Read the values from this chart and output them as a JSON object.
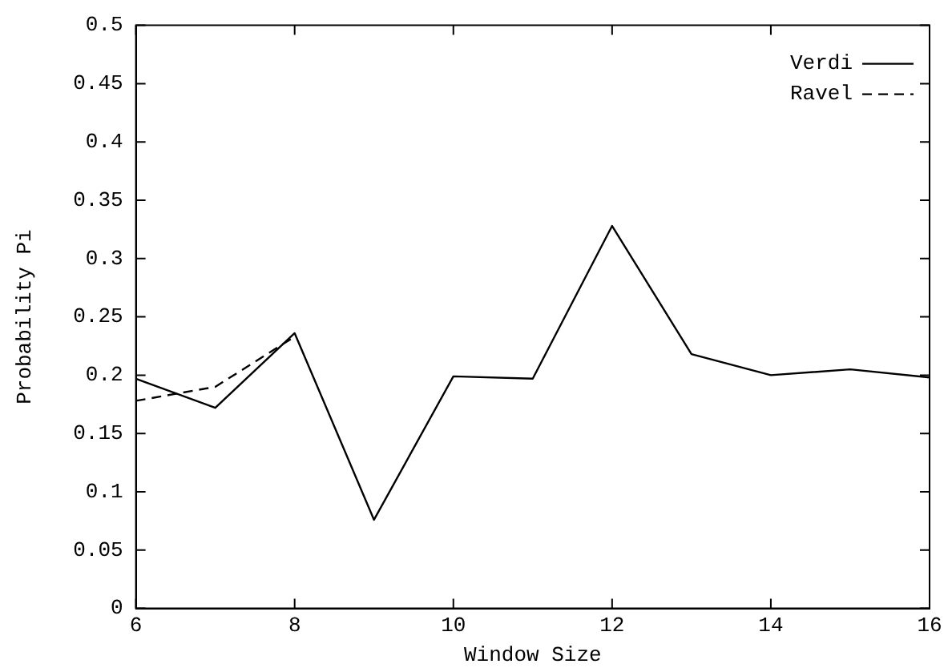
{
  "chart_data": {
    "type": "line",
    "xlabel": "Window Size",
    "ylabel": "Probability Pi",
    "x": [
      6,
      7,
      8,
      9,
      10,
      11,
      12,
      13,
      14,
      15,
      16
    ],
    "series": [
      {
        "name": "Verdi",
        "color": "#000000",
        "line_style": "solid",
        "values": [
          0.197,
          0.172,
          0.236,
          0.076,
          0.199,
          0.197,
          0.328,
          0.218,
          0.2,
          0.205,
          0.198
        ]
      },
      {
        "name": "Ravel",
        "color": "#000000",
        "line_style": "dashed",
        "x": [
          6,
          7,
          8
        ],
        "values": [
          0.178,
          0.19,
          0.233
        ]
      }
    ],
    "xlim": [
      6,
      16
    ],
    "xticks": [
      6,
      8,
      10,
      12,
      14,
      16
    ],
    "ylim": [
      0,
      0.5
    ],
    "yticks": [
      0,
      0.05,
      0.1,
      0.15,
      0.2,
      0.25,
      0.3,
      0.35,
      0.4,
      0.45,
      0.5
    ],
    "legend": "top right",
    "marker": "none",
    "grid": false
  }
}
